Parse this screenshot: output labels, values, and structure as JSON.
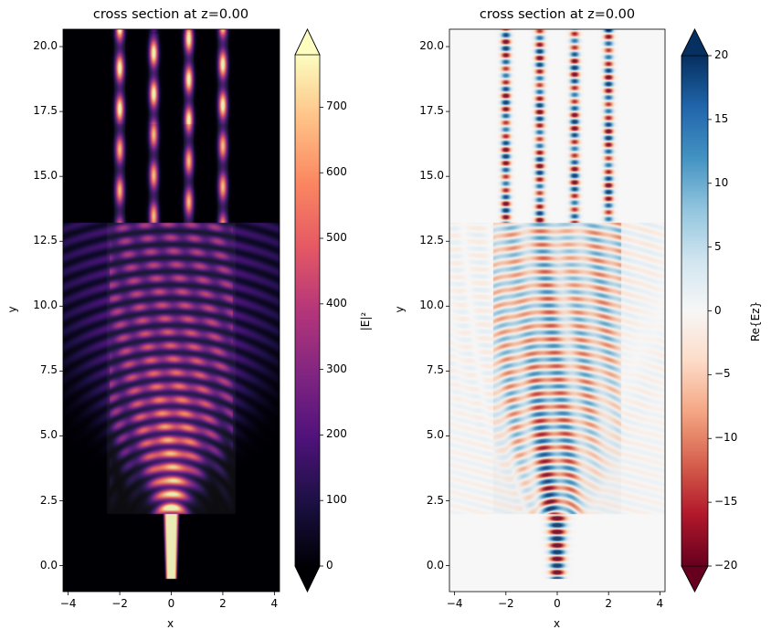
{
  "chart_data": [
    {
      "type": "heatmap",
      "title": "cross section at z=0.00",
      "xlabel": "x",
      "ylabel": "y",
      "xlim": [
        -4.2,
        4.2
      ],
      "ylim": [
        -1.0,
        20.67
      ],
      "xticks": [
        "−4",
        "−2",
        "0",
        "2",
        "4"
      ],
      "xtick_values": [
        -4,
        -2,
        0,
        2,
        4
      ],
      "yticks": [
        "0.0",
        "2.5",
        "5.0",
        "7.5",
        "10.0",
        "12.5",
        "15.0",
        "17.5",
        "20.0"
      ],
      "ytick_values": [
        0,
        2.5,
        5,
        7.5,
        10,
        12.5,
        15,
        17.5,
        20
      ],
      "field": "|E|²",
      "colormap": "magma",
      "colorbar": {
        "label": "|E|²",
        "range": [
          0,
          780
        ],
        "ticks": [
          "0",
          "100",
          "200",
          "300",
          "400",
          "500",
          "600",
          "700"
        ],
        "tick_values": [
          0,
          100,
          200,
          300,
          400,
          500,
          600,
          700
        ],
        "extend": "both"
      }
    },
    {
      "type": "heatmap",
      "title": "cross section at z=0.00",
      "xlabel": "x",
      "ylabel": "y",
      "xlim": [
        -4.2,
        4.2
      ],
      "ylim": [
        -1.0,
        20.67
      ],
      "xticks": [
        "−4",
        "−2",
        "0",
        "2",
        "4"
      ],
      "xtick_values": [
        -4,
        -2,
        0,
        2,
        4
      ],
      "yticks": [
        "0.0",
        "2.5",
        "5.0",
        "7.5",
        "10.0",
        "12.5",
        "15.0",
        "17.5",
        "20.0"
      ],
      "ytick_values": [
        0,
        2.5,
        5,
        7.5,
        10,
        12.5,
        15,
        17.5,
        20
      ],
      "field": "Re{Ez}",
      "colormap": "RdBu",
      "colorbar": {
        "label": "Re{Ez}",
        "range": [
          -20,
          20
        ],
        "ticks": [
          "−20",
          "−15",
          "−10",
          "−5",
          "0",
          "5",
          "10",
          "15",
          "20"
        ],
        "tick_values": [
          -20,
          -15,
          -10,
          -5,
          0,
          5,
          10,
          15,
          20
        ],
        "extend": "both"
      }
    }
  ]
}
